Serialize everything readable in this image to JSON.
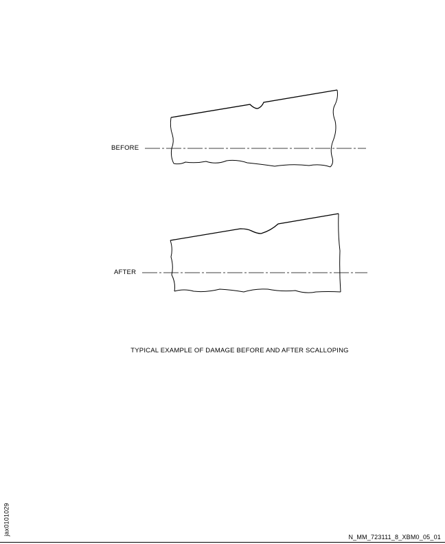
{
  "labels": {
    "before": "BEFORE",
    "after": "AFTER"
  },
  "caption": "TYPICAL EXAMPLE OF DAMAGE BEFORE AND AFTER SCALLOPING",
  "figure_id": "jax0101029",
  "reference": "N_MM_723111_8_XBM0_05_01",
  "colors": {
    "line": "#000000",
    "background": "#ffffff"
  }
}
